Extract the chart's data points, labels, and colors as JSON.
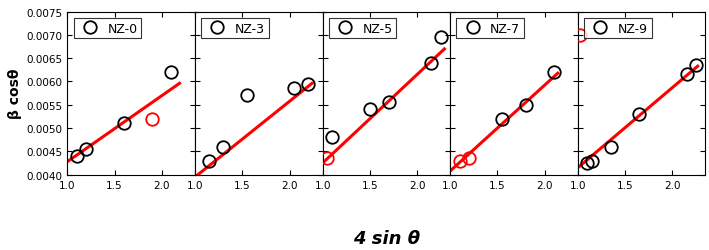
{
  "panels": [
    {
      "label": "NZ-0",
      "x_data": [
        1.1,
        1.2,
        1.6,
        2.1
      ],
      "y_data": [
        0.0044,
        0.00455,
        0.0051,
        0.0062
      ],
      "red_points_idx": [],
      "red_x": [
        1.9
      ],
      "red_y": [
        0.0052
      ],
      "line_x": [
        1.0,
        2.2
      ],
      "line_y": [
        0.00428,
        0.00598
      ]
    },
    {
      "label": "NZ-3",
      "x_data": [
        1.15,
        1.3,
        1.55,
        2.05,
        2.2
      ],
      "y_data": [
        0.0043,
        0.0046,
        0.0057,
        0.00585,
        0.00595
      ],
      "red_points_idx": [],
      "red_x": [],
      "red_y": [],
      "line_x": [
        1.0,
        2.25
      ],
      "line_y": [
        0.00395,
        0.00598
      ]
    },
    {
      "label": "NZ-5",
      "x_data": [
        1.1,
        1.5,
        1.7,
        2.15,
        2.25
      ],
      "y_data": [
        0.0048,
        0.0054,
        0.00555,
        0.0064,
        0.00695
      ],
      "red_points_idx": [],
      "red_x": [
        1.05
      ],
      "red_y": [
        0.00435
      ],
      "line_x": [
        1.0,
        2.3
      ],
      "line_y": [
        0.00425,
        0.00672
      ]
    },
    {
      "label": "NZ-7",
      "x_data": [
        1.55,
        1.8,
        2.1
      ],
      "y_data": [
        0.0052,
        0.0055,
        0.0062
      ],
      "red_points_idx": [],
      "red_x": [
        1.1,
        1.2
      ],
      "red_y": [
        0.0043,
        0.00435
      ],
      "line_x": [
        1.0,
        2.15
      ],
      "line_y": [
        0.00408,
        0.0062
      ]
    },
    {
      "label": "NZ-9",
      "x_data": [
        1.1,
        1.15,
        1.35,
        1.65,
        2.15,
        2.25
      ],
      "y_data": [
        0.00425,
        0.0043,
        0.0046,
        0.0053,
        0.00615,
        0.00635
      ],
      "red_points_idx": [],
      "red_x": [
        1.02
      ],
      "red_y": [
        0.007
      ],
      "line_x": [
        1.0,
        2.28
      ],
      "line_y": [
        0.00415,
        0.00635
      ]
    }
  ],
  "xlim": [
    1.0,
    2.35
  ],
  "ylim": [
    0.004,
    0.0075
  ],
  "yticks": [
    0.004,
    0.0045,
    0.005,
    0.0055,
    0.006,
    0.0065,
    0.007,
    0.0075
  ],
  "xticks": [
    1.0,
    1.5,
    2.0
  ],
  "xlabel": "4 sin θ",
  "ylabel": "β cosθ",
  "line_color": "#FF0000",
  "circle_color": "black",
  "red_circle_color": "#FF0000",
  "bg_color": "#FFFFFF",
  "line_width": 2.2,
  "marker_size": 9
}
